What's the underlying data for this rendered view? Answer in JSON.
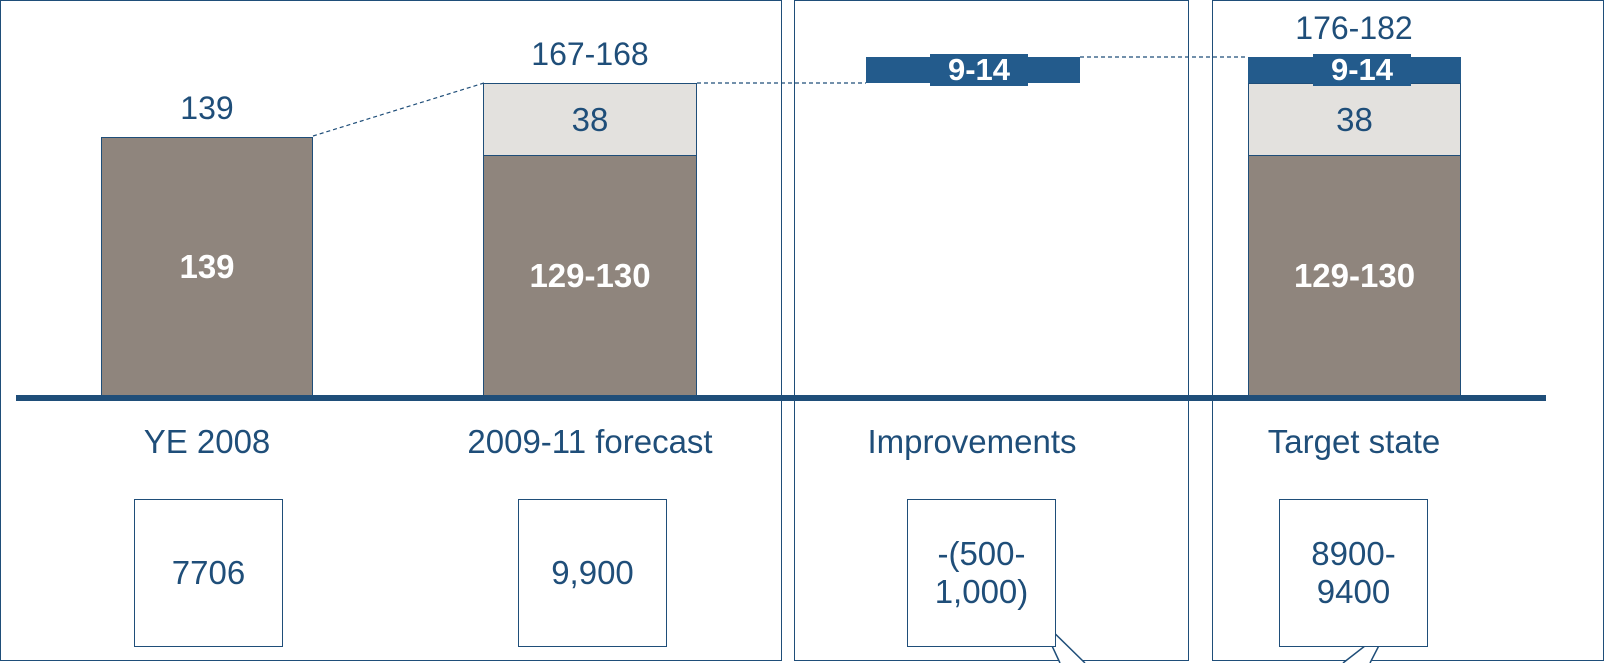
{
  "chart_data": {
    "type": "bar",
    "subtype": "stacked-waterfall",
    "categories": [
      "YE 2008",
      "2009-11 forecast",
      "Improvements",
      "Target state"
    ],
    "segments": [
      {
        "category": "YE 2008",
        "layer": "base",
        "value": 139,
        "label": "139"
      },
      {
        "category": "2009-11 forecast",
        "layer": "base",
        "value": 129.5,
        "label": "129-130"
      },
      {
        "category": "2009-11 forecast",
        "layer": "mid",
        "value": 38,
        "label": "38"
      },
      {
        "category": "Improvements",
        "layer": "top",
        "value": 11.5,
        "base": 167.5,
        "label": "9-14"
      },
      {
        "category": "Target state",
        "layer": "base",
        "value": 129.5,
        "label": "129-130"
      },
      {
        "category": "Target state",
        "layer": "mid",
        "value": 38,
        "label": "38"
      },
      {
        "category": "Target state",
        "layer": "top",
        "value": 11.5,
        "label": "9-14"
      }
    ],
    "totals": [
      "139",
      "167-168",
      "",
      "176-182"
    ],
    "boxes": [
      "7706",
      "9,900",
      "-(500-\n1,000)",
      "8900-\n9400"
    ],
    "colors": {
      "base": "#8f857d",
      "mid": "#e3e1de",
      "top": "#235b8c",
      "text": "#1f4e79",
      "axis": "#1f4e79"
    }
  }
}
